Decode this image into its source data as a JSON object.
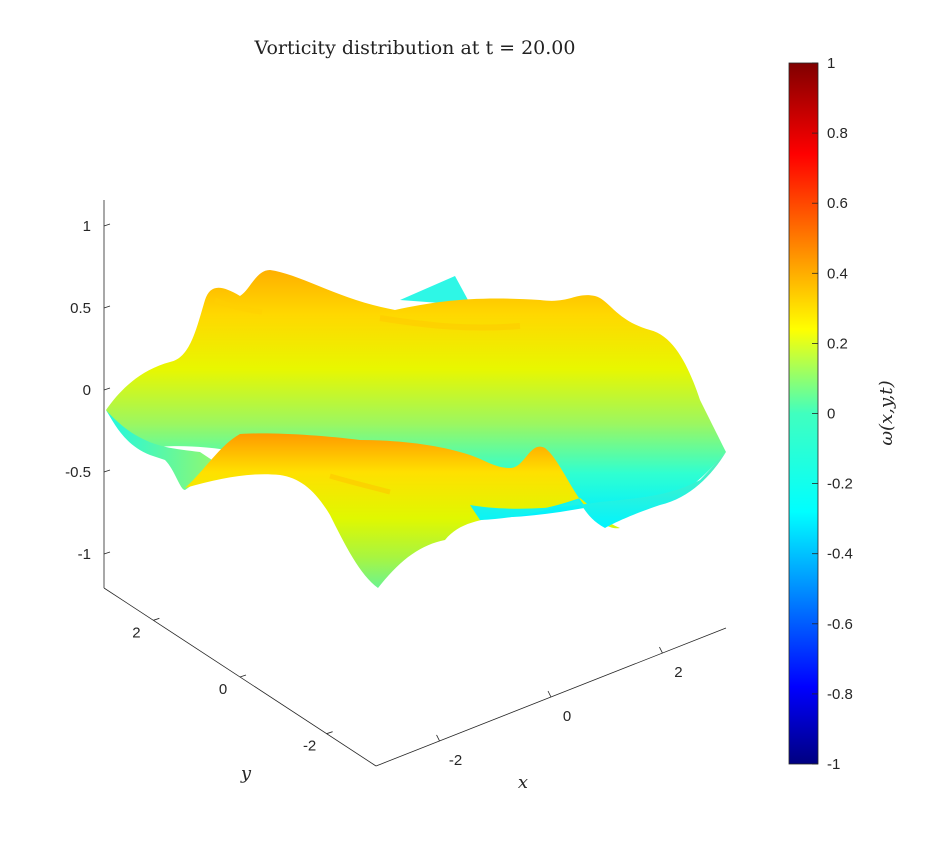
{
  "chart_data": {
    "type": "surface",
    "title": "Vorticity distribution at t = 20.00",
    "xlabel": "x",
    "ylabel": "y",
    "zlabel": "",
    "colorbar_label": "ω(x,y,t)",
    "xlim": [
      -3.14,
      3.14
    ],
    "ylim": [
      -3.14,
      3.14
    ],
    "zlim": [
      -1.2,
      1.2
    ],
    "xticks": [
      "-2",
      "0",
      "2"
    ],
    "yticks": [
      "-2",
      "0",
      "2"
    ],
    "zticks": [
      "-1",
      "-0.5",
      "0",
      "0.5",
      "1"
    ],
    "colorbar_ticks": [
      "-1",
      "-0.8",
      "-0.6",
      "-0.4",
      "-0.2",
      "0",
      "0.2",
      "0.4",
      "0.6",
      "0.8",
      "1"
    ],
    "clim": [
      -1,
      1
    ],
    "colormap": "jet",
    "grid": false,
    "surface_description": "2D periodic vorticity field, values roughly between -0.3 and 0.5, rendered as a shaded surface"
  }
}
